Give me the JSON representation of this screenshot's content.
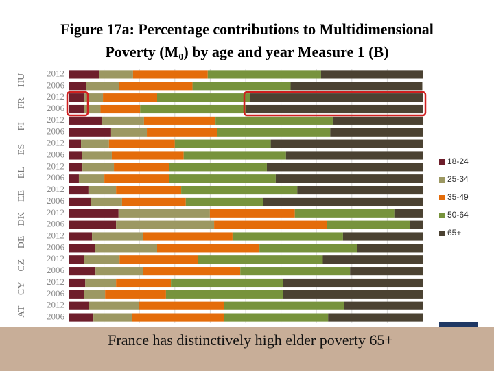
{
  "chart_data": {
    "type": "stacked_barh",
    "title": [
      "Figure 17a: Percentage contributions to Multidimensional",
      "Poverty (M",
      "0",
      ") by age and year Measure 1 (B)"
    ],
    "groups": [
      "HU",
      "FR",
      "FI",
      "ES",
      "EL",
      "EE",
      "DK",
      "DE",
      "CZ",
      "CY",
      "AT"
    ],
    "categories": [
      "2012",
      "2006",
      "2012",
      "2006",
      "2012",
      "2006",
      "2012",
      "2006",
      "2012",
      "2006",
      "2012",
      "2006",
      "2012",
      "2006",
      "2012",
      "2006",
      "2012",
      "2006",
      "2012",
      "2006",
      "2012",
      "2006"
    ],
    "xlim": [
      0,
      100
    ],
    "legend": "right",
    "series": [
      {
        "name": "18-24",
        "color": "#6e1e2b",
        "values": [
          8.7,
          5.0,
          4.5,
          4.3,
          9.3,
          12.0,
          3.5,
          3.7,
          3.9,
          2.9,
          5.6,
          6.2,
          14.1,
          13.4,
          6.6,
          7.4,
          4.3,
          7.6,
          4.7,
          4.3,
          5.8,
          7.0
        ]
      },
      {
        "name": "25-34",
        "color": "#9c9862",
        "values": [
          9.5,
          9.3,
          5.2,
          4.7,
          12.0,
          10.1,
          7.9,
          8.5,
          8.9,
          7.2,
          7.8,
          8.9,
          25.8,
          27.7,
          14.5,
          17.6,
          10.1,
          13.4,
          8.7,
          6.0,
          14.0,
          11.0
        ]
      },
      {
        "name": "35-49",
        "color": "#e46c0a",
        "values": [
          21.1,
          20.7,
          15.3,
          11.2,
          20.2,
          19.8,
          18.6,
          20.3,
          15.5,
          18.2,
          18.4,
          18.0,
          24.0,
          31.8,
          25.2,
          28.9,
          22.1,
          27.5,
          15.5,
          17.2,
          24.0,
          25.8
        ]
      },
      {
        "name": "50-64",
        "color": "#77933c",
        "values": [
          32.0,
          27.7,
          26.2,
          29.8,
          33.1,
          32.0,
          27.1,
          28.9,
          27.7,
          30.2,
          32.8,
          21.9,
          28.1,
          23.6,
          31.2,
          27.5,
          35.3,
          31.0,
          31.6,
          33.1,
          34.1,
          29.5
        ]
      },
      {
        "name": "65+",
        "color": "#4b4232",
        "values": [
          28.7,
          37.2,
          48.8,
          50.0,
          25.4,
          26.1,
          42.9,
          38.6,
          44.0,
          41.5,
          35.4,
          45.0,
          8.0,
          3.5,
          22.5,
          18.6,
          28.2,
          20.5,
          39.5,
          39.4,
          22.1,
          26.7
        ]
      }
    ],
    "caption": "France has distinctively high elder poverty 65+"
  }
}
